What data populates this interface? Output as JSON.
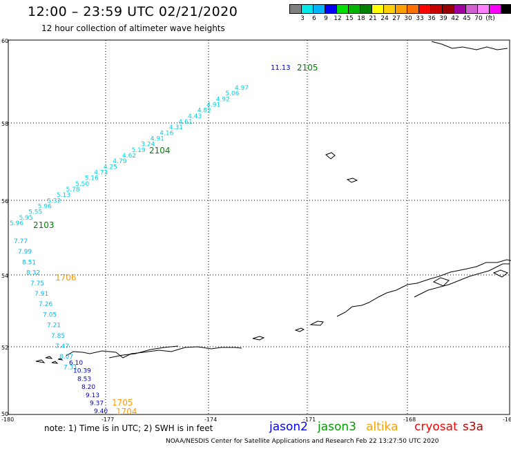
{
  "title": "12:00 – 23:59 UTC 02/21/2020",
  "subtitle": "12 hour collection of altimeter wave heights",
  "colorbar": {
    "colors": [
      "#808080",
      "#00e8e8",
      "#00b4ff",
      "#0000ff",
      "#00e000",
      "#00b400",
      "#008000",
      "#ffff00",
      "#ffd000",
      "#ffa000",
      "#ff7000",
      "#ff0000",
      "#c80000",
      "#960000",
      "#a000a0",
      "#d060d0",
      "#ff80ff",
      "#ff00ff",
      "#000000"
    ],
    "ticks": [
      "3",
      "6",
      "9",
      "12",
      "15",
      "18",
      "21",
      "24",
      "27",
      "30",
      "33",
      "36",
      "39",
      "42",
      "45",
      "70",
      "(ft)"
    ]
  },
  "axes": {
    "lat_labels": [
      "60",
      "58",
      "56",
      "54",
      "52",
      "50"
    ],
    "lon_labels": [
      "-180",
      "-177",
      "-174",
      "-171",
      "-168",
      "-16"
    ]
  },
  "tracks": [
    {
      "name": "2105",
      "color": "#008000",
      "labels": [
        {
          "text": "11.13",
          "color": "#0000c0"
        }
      ]
    },
    {
      "name": "2104",
      "color": "#008000"
    },
    {
      "name": "2103",
      "color": "#008000"
    },
    {
      "name": "1706",
      "color": "#ff9900"
    },
    {
      "name": "1705",
      "color": "#ff9900"
    },
    {
      "name": "1704",
      "color": "#ff9900"
    }
  ],
  "wave_values_upper": [
    "4.97",
    "5.06",
    "4.92",
    "4.91",
    "4.82",
    "4.43",
    "4.61",
    "4.31",
    "4.16",
    "4.91",
    "3.24",
    "5.19",
    "4.62",
    "4.79",
    "4.25",
    "4.73",
    "5.16",
    "5.50",
    "5.78",
    "5.13",
    "5.32",
    "5.96",
    "5.55",
    "5.95",
    "5.96"
  ],
  "wave_values_lower": [
    "7.77",
    "7.99",
    "8.51",
    "8.32",
    "7.75",
    "7.91",
    "7.26",
    "7.05",
    "7.21",
    "7.85",
    "7.47",
    "8.07",
    "7.31"
  ],
  "wave_values_south": [
    "6.10",
    "10.39",
    "8.53",
    "8.20",
    "9.13",
    "9.37",
    "9.40"
  ],
  "note": "note:  1) Time is in UTC;  2) SWH is in feet",
  "satellites": [
    {
      "name": "jason2",
      "color": "#0000ff"
    },
    {
      "name": "jason3",
      "color": "#00a000"
    },
    {
      "name": "altika",
      "color": "#ffa000"
    },
    {
      "name": "cryosat",
      "color": "#ff0000"
    },
    {
      "name": "s3a",
      "color": "#c00000"
    }
  ],
  "credit": "NOAA/NESDIS Center for Satellite Applications and Research     Feb 22 13:27:50 UTC 2020"
}
